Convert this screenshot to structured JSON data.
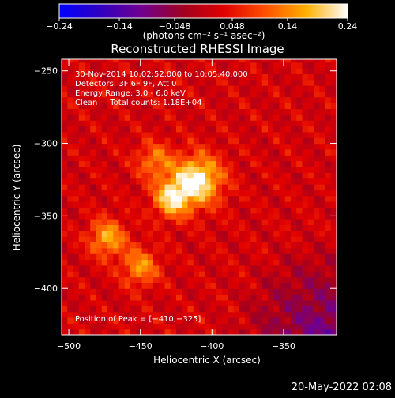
{
  "chart_data": {
    "type": "heatmap",
    "title": "Reconstructed RHESSI Image",
    "xlabel": "Heliocentric X (arcsec)",
    "ylabel": "Heliocentric Y (arcsec)",
    "xlim": [
      -505,
      -313
    ],
    "ylim": [
      -432,
      -242
    ],
    "xticks": [
      -500,
      -450,
      -400,
      -350
    ],
    "xtick_labels": [
      "−500",
      "−450",
      "−400",
      "−350"
    ],
    "yticks": [
      -250,
      -300,
      -350,
      -400
    ],
    "ytick_labels": [
      "−250",
      "−300",
      "−350",
      "−400"
    ],
    "colorbar": {
      "range": [
        -0.24,
        0.24
      ],
      "ticks": [
        -0.24,
        -0.14,
        -0.048,
        0.048,
        0.14,
        0.24
      ],
      "tick_labels": [
        "−0.24",
        "−0.14",
        "−0.048",
        "0.048",
        "0.14",
        "0.24"
      ],
      "unit_label": "(photons cm⁻² s⁻¹ asec⁻²)",
      "colors": [
        "#0000ff",
        "#3000c0",
        "#700090",
        "#a00020",
        "#e00000",
        "#ff5000",
        "#ffb000",
        "#ffffff"
      ]
    },
    "annotations": [
      "30-Nov-2014 10:02:52.000 to 10:05:40.000",
      "Detectors: 3F 6F 9F, Att 0",
      "Energy Range: 3.0 - 6.0 keV",
      "Clean     Total counts: 1.18E+04"
    ],
    "peak_label": "Position of Peak = [−410,−325]",
    "peak": [
      -410,
      -325
    ],
    "sources": [
      {
        "x": -410,
        "y": -325,
        "value": 0.24
      },
      {
        "x": -428,
        "y": -338,
        "value": 0.2
      },
      {
        "x": -473,
        "y": -365,
        "value": 0.17
      },
      {
        "x": -450,
        "y": -385,
        "value": 0.15
      },
      {
        "x": -440,
        "y": -312,
        "value": 0.13
      }
    ]
  },
  "footer": {
    "date": "20-May-2022 02:08"
  }
}
